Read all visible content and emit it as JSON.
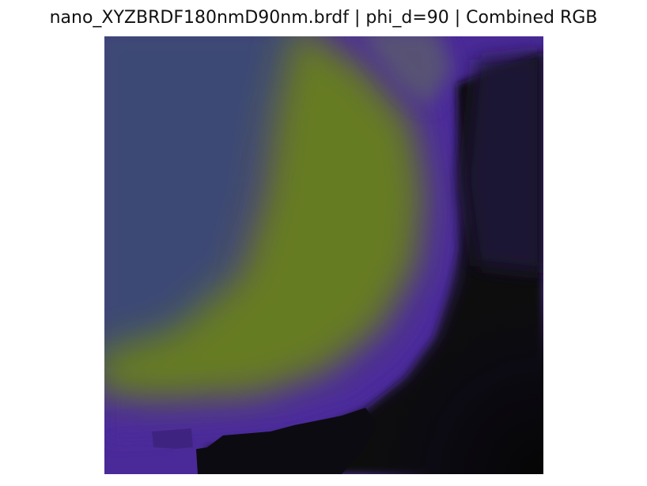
{
  "figure": {
    "title": "nano_XYZBRDF180nmD90nm.brdf | phi_d=90 | Combined RGB"
  },
  "colors": {
    "background": "#ffffff",
    "slate_blue": "#3d4a72",
    "olive_green": "#647a22",
    "violet": "#4c2a9c",
    "deep_violet": "#3a1f7c",
    "dark": "#0a0a0c",
    "dark_violet": "#1a1030"
  }
}
